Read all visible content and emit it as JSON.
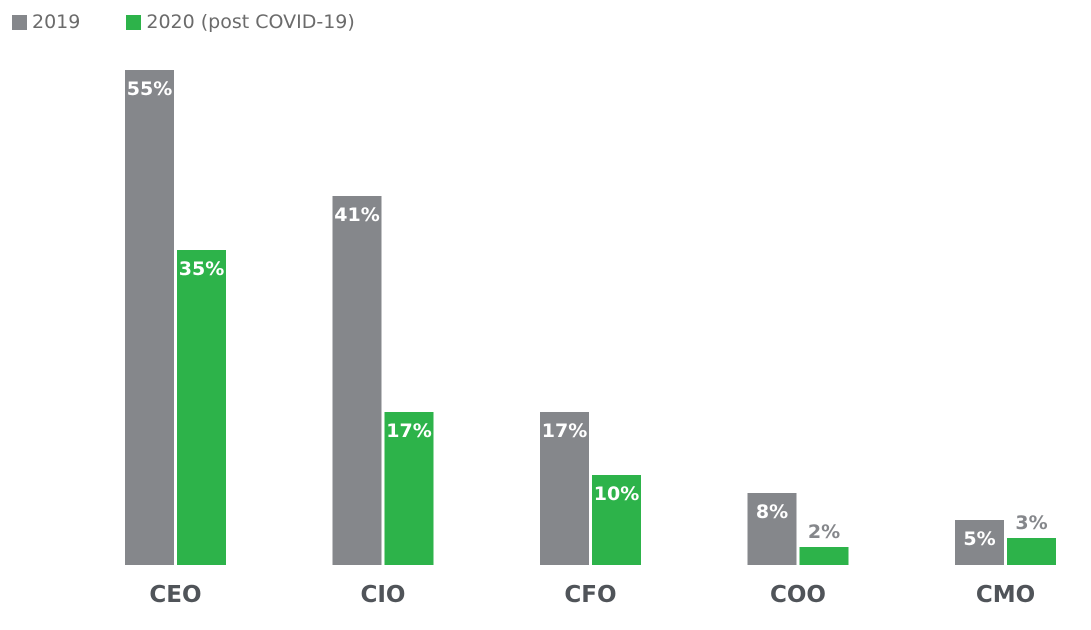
{
  "chart_data": {
    "type": "bar",
    "categories": [
      "CEO",
      "CIO",
      "CFO",
      "COO",
      "CMO"
    ],
    "series": [
      {
        "name": "2019",
        "values": [
          55,
          41,
          17,
          8,
          5
        ],
        "labels": [
          "55%",
          "41%",
          "17%",
          "8%",
          "5%"
        ],
        "color": "#85878b"
      },
      {
        "name": "2020 (post COVID-19)",
        "values": [
          35,
          17,
          10,
          2,
          3
        ],
        "labels": [
          "35%",
          "17%",
          "10%",
          "2%",
          "3%"
        ],
        "color": "#2db34a"
      }
    ],
    "ylim": [
      0,
      55
    ],
    "grid": false,
    "legend_position": "top-left",
    "label_color_inside": "#ffffff",
    "label_color_outside": "#85878b"
  }
}
